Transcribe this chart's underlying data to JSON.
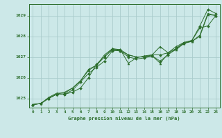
{
  "title": "Graphe pression niveau de la mer (hPa)",
  "bg_color": "#cce8e8",
  "grid_color": "#aacccc",
  "line_color": "#2d6e2d",
  "xlim": [
    -0.5,
    23.5
  ],
  "ylim": [
    1024.55,
    1029.55
  ],
  "yticks": [
    1025,
    1026,
    1027,
    1028,
    1029
  ],
  "xticks": [
    0,
    1,
    2,
    3,
    4,
    5,
    6,
    7,
    8,
    9,
    10,
    11,
    12,
    13,
    14,
    15,
    16,
    17,
    18,
    19,
    20,
    21,
    22,
    23
  ],
  "series": [
    [
      1024.7,
      1024.75,
      1025.0,
      1025.2,
      1025.2,
      1025.3,
      1025.5,
      1026.0,
      1026.65,
      1027.0,
      1027.35,
      1027.35,
      1027.1,
      1027.0,
      1027.0,
      1027.1,
      1027.1,
      1027.2,
      1027.5,
      1027.7,
      1027.8,
      1028.5,
      1029.3,
      1029.1
    ],
    [
      1024.7,
      1024.75,
      1025.0,
      1025.2,
      1025.2,
      1025.4,
      1025.8,
      1026.2,
      1026.5,
      1026.8,
      1027.3,
      1027.3,
      1027.0,
      1026.9,
      1026.95,
      1027.05,
      1026.8,
      1027.1,
      1027.4,
      1027.65,
      1027.8,
      1028.4,
      1028.5,
      1029.0
    ],
    [
      1024.7,
      1024.75,
      1025.0,
      1025.2,
      1025.3,
      1025.5,
      1025.85,
      1026.4,
      1026.6,
      1027.1,
      1027.4,
      1027.3,
      1027.1,
      1027.0,
      1027.0,
      1027.05,
      1026.7,
      1027.15,
      1027.35,
      1027.65,
      1027.75,
      1028.0,
      1029.05,
      1029.0
    ],
    [
      1024.7,
      1024.75,
      1025.05,
      1025.25,
      1025.25,
      1025.5,
      1025.85,
      1026.35,
      1026.6,
      1027.0,
      1027.4,
      1027.35,
      1026.7,
      1026.95,
      1027.05,
      1027.1,
      1027.5,
      1027.2,
      1027.4,
      1027.7,
      1027.75,
      1028.05,
      1029.1,
      1029.0
    ]
  ]
}
